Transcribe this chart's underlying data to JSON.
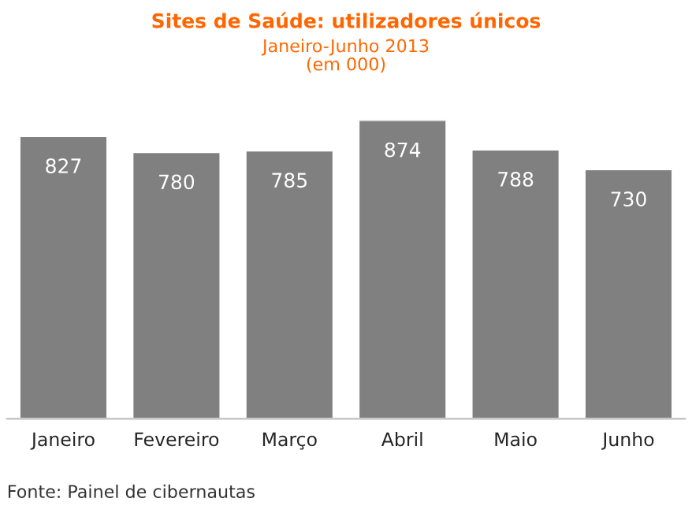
{
  "chart_data": {
    "type": "bar",
    "title": "Sites de Saúde: utilizadores únicos",
    "subtitle": "Janeiro-Junho 2013\n(em 000)",
    "categories": [
      "Janeiro",
      "Fevereiro",
      "Março",
      "Abril",
      "Maio",
      "Junho"
    ],
    "values": [
      827,
      780,
      785,
      874,
      788,
      730
    ],
    "color": "#808080",
    "data_labels": true,
    "grid": false,
    "legend": false,
    "tick_labels": "x",
    "annotations": [
      "Fonte: Painel de cibernautas"
    ]
  }
}
